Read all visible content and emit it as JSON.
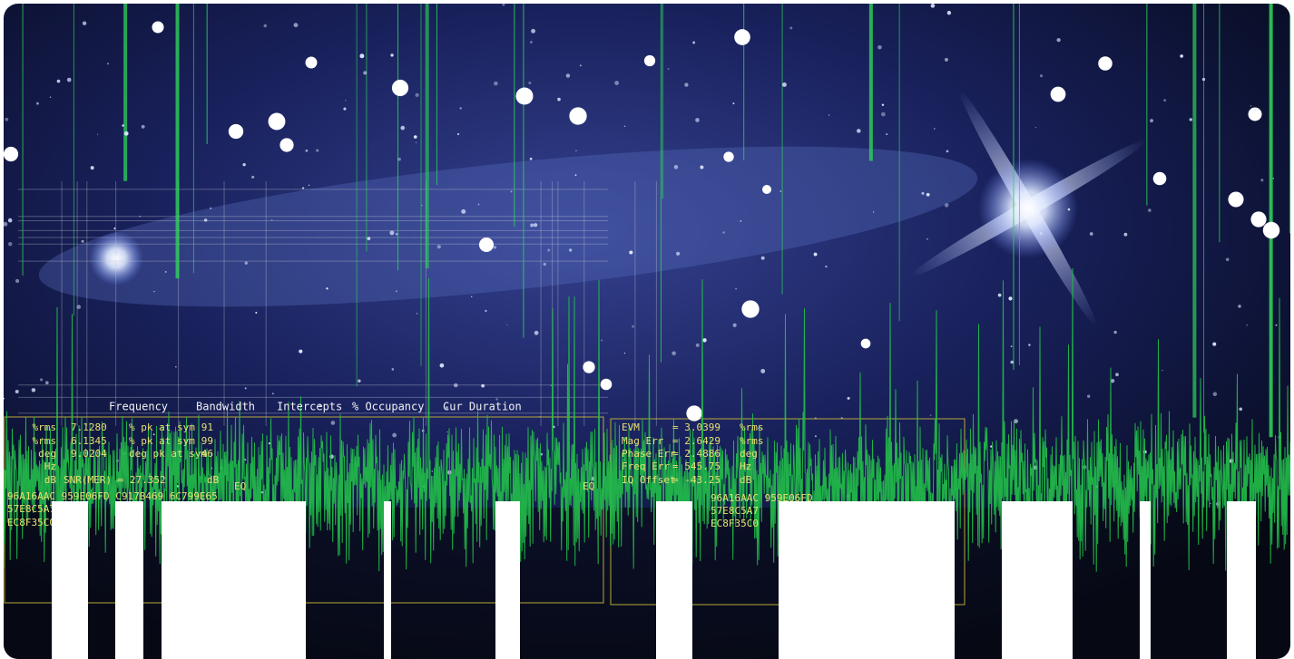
{
  "header": {
    "columns": [
      "Frequency",
      "Bandwidth",
      "Intercepts",
      "% Occupancy",
      "Cur Duration"
    ]
  },
  "left_panel": {
    "rows": [
      [
        "%rms",
        "7.1280",
        "% pk at sym",
        "91"
      ],
      [
        "%rms",
        "6.1345",
        "% pk at sym",
        "99"
      ],
      [
        "deg",
        "9.0204",
        "deg pk at sym",
        "46"
      ],
      [
        "Hz"
      ],
      [
        "dB",
        "SNR(MER) = 27.352",
        "dB"
      ]
    ],
    "hex": [
      "96A16AAC 959E06FD C917B469 6C799E65",
      "57E8C5A7",
      "EC8F35C0"
    ]
  },
  "right_panel": {
    "rows": [
      [
        "EVM",
        "= 3.0399",
        "%rms"
      ],
      [
        "Mag Err",
        "= 2.6429",
        "%rms"
      ],
      [
        "Phase Err",
        "= 2.4886",
        "deg"
      ],
      [
        "Freq Err",
        "= 545.75",
        "Hz"
      ],
      [
        "IQ Offset",
        "= -43.25",
        "dB"
      ]
    ],
    "hex": [
      "96A16AAC 959E06FD",
      "57E8C5A7",
      "EC8F35C0"
    ]
  },
  "eq_labels": [
    "EQ",
    "EQ"
  ]
}
